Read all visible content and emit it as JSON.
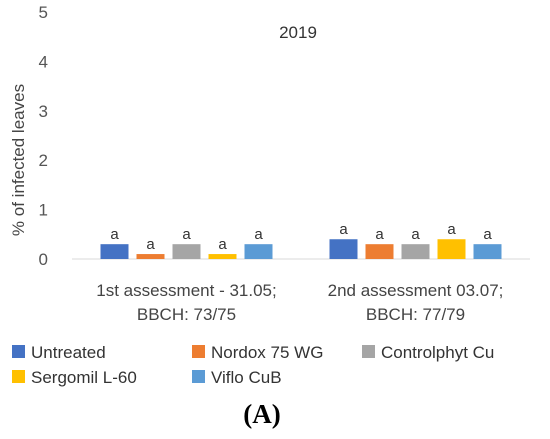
{
  "chart_data": {
    "type": "bar",
    "title": "2019",
    "ylabel": "% of infected leaves",
    "xlabel": "",
    "ylim": [
      0,
      5
    ],
    "yticks": [
      0,
      1,
      2,
      3,
      4,
      5
    ],
    "grid": false,
    "legend_position": "bottom",
    "categories": [
      [
        "1st assessment - 31.05;",
        "BBCH: 73/75"
      ],
      [
        "2nd assessment 03.07;",
        "BBCH: 77/79"
      ]
    ],
    "series": [
      {
        "name": "Untreated",
        "color": "#4472C4",
        "values": [
          0.3,
          0.4
        ],
        "labels": [
          "a",
          "a"
        ]
      },
      {
        "name": "Nordox 75 WG",
        "color": "#ED7D31",
        "values": [
          0.1,
          0.3
        ],
        "labels": [
          "a",
          "a"
        ]
      },
      {
        "name": "Controlphyt Cu",
        "color": "#A5A5A5",
        "values": [
          0.3,
          0.3
        ],
        "labels": [
          "a",
          "a"
        ]
      },
      {
        "name": "Sergomil L-60",
        "color": "#FFC000",
        "values": [
          0.1,
          0.4
        ],
        "labels": [
          "a",
          "a"
        ]
      },
      {
        "name": "Viflo CuB",
        "color": "#5B9BD5",
        "values": [
          0.3,
          0.3
        ],
        "labels": [
          "a",
          "a"
        ]
      }
    ]
  },
  "panel_label": "(A)"
}
